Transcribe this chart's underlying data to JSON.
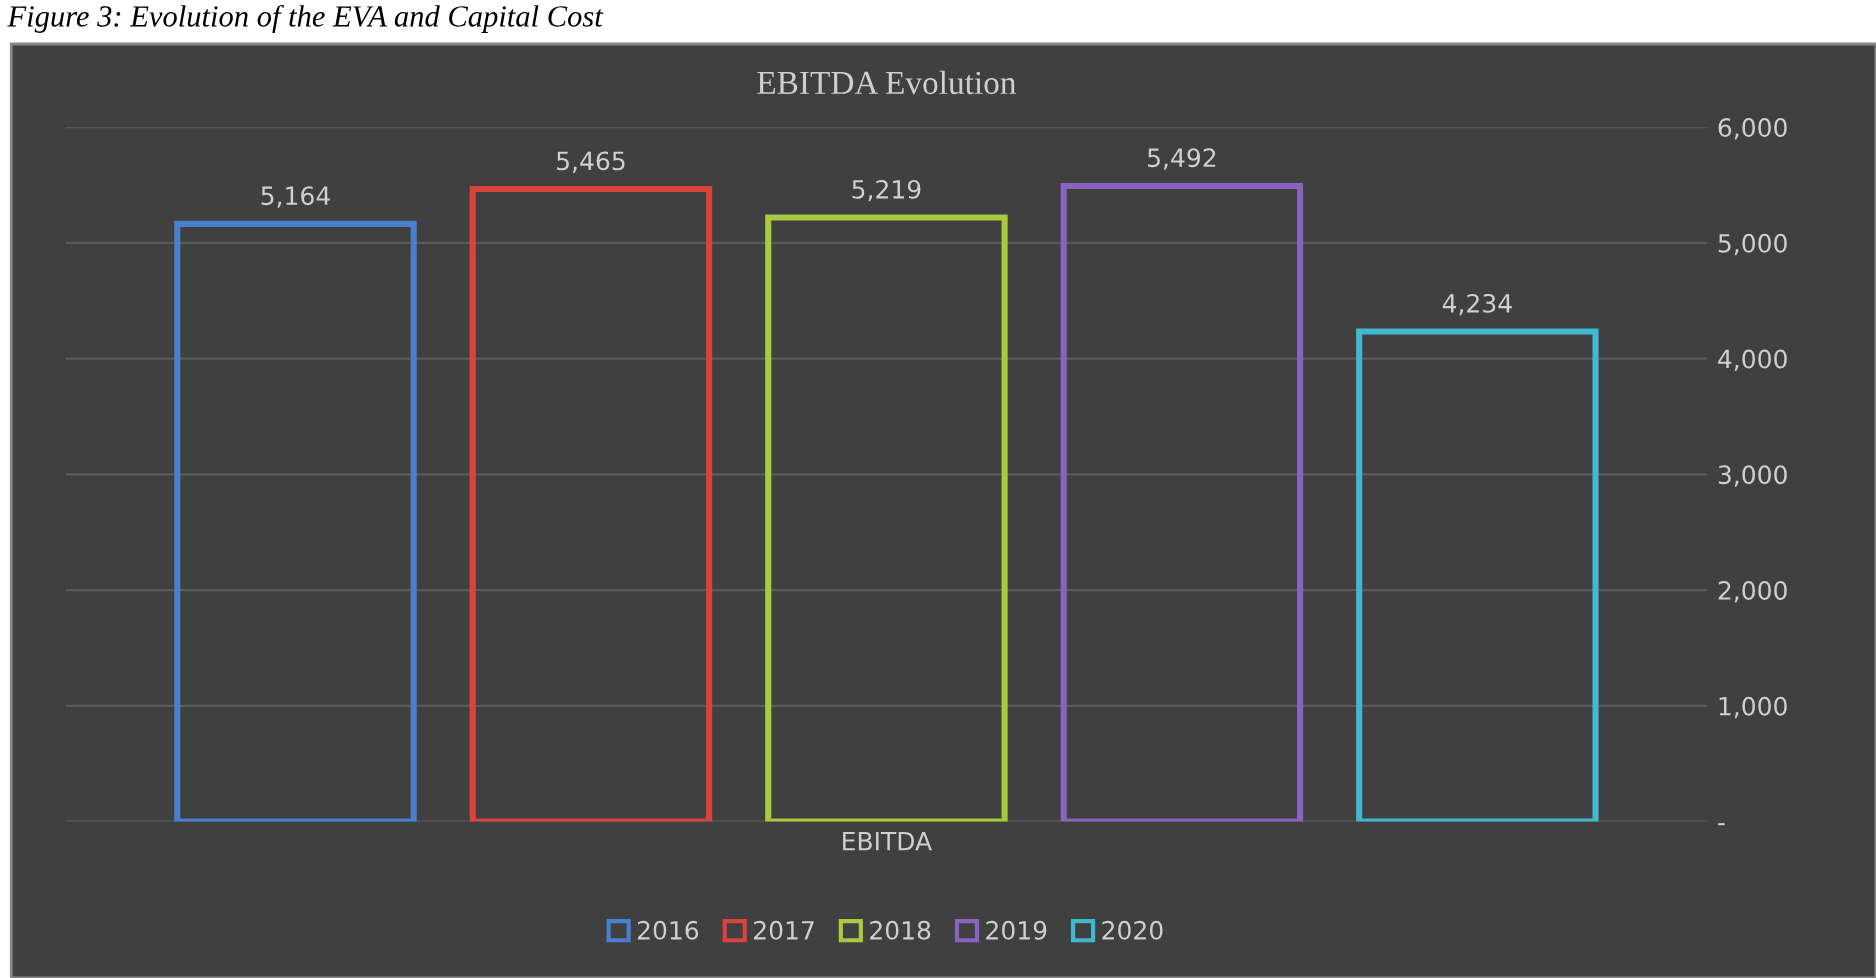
{
  "chart_data": {
    "type": "bar",
    "title": "EBITDA Evolution",
    "annotations": [
      "Figure 3: Evolution of the EVA and Capital Cost"
    ],
    "categories": [
      "EBITDA"
    ],
    "series": [
      {
        "name": "2016",
        "color": "#4a7fd0",
        "values": [
          5164
        ],
        "value_labels": [
          "5,164"
        ]
      },
      {
        "name": "2017",
        "color": "#d9443f",
        "values": [
          5465
        ],
        "value_labels": [
          "5,465"
        ]
      },
      {
        "name": "2018",
        "color": "#a8c940",
        "values": [
          5219
        ],
        "value_labels": [
          "5,219"
        ]
      },
      {
        "name": "2019",
        "color": "#8a63c0",
        "values": [
          5492
        ],
        "value_labels": [
          "5,492"
        ]
      },
      {
        "name": "2020",
        "color": "#3fb8d0",
        "values": [
          4234
        ],
        "value_labels": [
          "4,234"
        ]
      }
    ],
    "ylim": [
      0,
      6000
    ],
    "yticks": [
      {
        "value": 0,
        "label": "-"
      },
      {
        "value": 1000,
        "label": "1,000"
      },
      {
        "value": 2000,
        "label": "2,000"
      },
      {
        "value": 3000,
        "label": "3,000"
      },
      {
        "value": 4000,
        "label": "4,000"
      },
      {
        "value": 5000,
        "label": "5,000"
      },
      {
        "value": 6000,
        "label": "6,000"
      }
    ],
    "grid": "y",
    "legend": "bottom"
  }
}
